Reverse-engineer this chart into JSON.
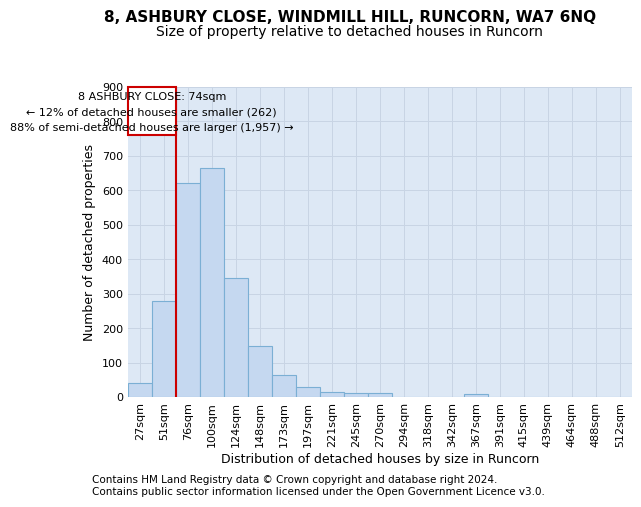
{
  "title1": "8, ASHBURY CLOSE, WINDMILL HILL, RUNCORN, WA7 6NQ",
  "title2": "Size of property relative to detached houses in Runcorn",
  "xlabel": "Distribution of detached houses by size in Runcorn",
  "ylabel": "Number of detached properties",
  "footnote1": "Contains HM Land Registry data © Crown copyright and database right 2024.",
  "footnote2": "Contains public sector information licensed under the Open Government Licence v3.0.",
  "bins": [
    "27sqm",
    "51sqm",
    "76sqm",
    "100sqm",
    "124sqm",
    "148sqm",
    "173sqm",
    "197sqm",
    "221sqm",
    "245sqm",
    "270sqm",
    "294sqm",
    "318sqm",
    "342sqm",
    "367sqm",
    "391sqm",
    "415sqm",
    "439sqm",
    "464sqm",
    "488sqm",
    "512sqm"
  ],
  "bar_heights": [
    40,
    280,
    620,
    665,
    345,
    148,
    65,
    30,
    15,
    12,
    11,
    0,
    0,
    0,
    8,
    0,
    0,
    0,
    0,
    0,
    0
  ],
  "bar_color": "#c5d8f0",
  "bar_edge_color": "#7bafd4",
  "vline_color": "#cc0000",
  "box_edge_color": "#cc0000",
  "annotation_title": "8 ASHBURY CLOSE: 74sqm",
  "annotation_line1": "← 12% of detached houses are smaller (262)",
  "annotation_line2": "88% of semi-detached houses are larger (1,957) →",
  "ylim": [
    0,
    900
  ],
  "yticks": [
    0,
    100,
    200,
    300,
    400,
    500,
    600,
    700,
    800,
    900
  ],
  "grid_color": "#c8d4e4",
  "bg_color": "#dde8f5",
  "title1_fontsize": 11,
  "title2_fontsize": 10,
  "xlabel_fontsize": 9,
  "ylabel_fontsize": 9,
  "tick_fontsize": 8,
  "annot_fontsize": 8,
  "footnote_fontsize": 7.5
}
